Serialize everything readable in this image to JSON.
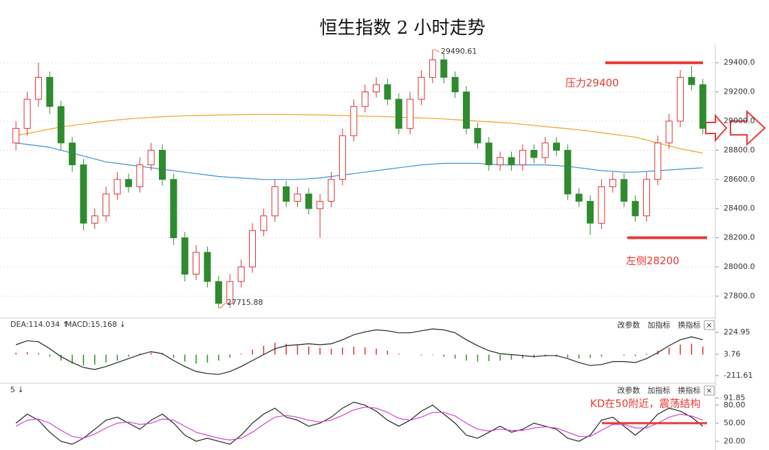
{
  "chart_data": [
    {
      "type": "candlestick",
      "title": "恒生指数 2 小时走势",
      "candles": [
        [
          28850,
          29000,
          28800,
          28950
        ],
        [
          28950,
          29200,
          28900,
          29150
        ],
        [
          29150,
          29400,
          29100,
          29300
        ],
        [
          29300,
          29340,
          29050,
          29100
        ],
        [
          29100,
          29140,
          28800,
          28850
        ],
        [
          28850,
          28890,
          28650,
          28700
        ],
        [
          28700,
          28740,
          28250,
          28300
        ],
        [
          28300,
          28400,
          28260,
          28350
        ],
        [
          28350,
          28550,
          28310,
          28500
        ],
        [
          28500,
          28650,
          28460,
          28600
        ],
        [
          28600,
          28640,
          28510,
          28550
        ],
        [
          28550,
          28750,
          28510,
          28700
        ],
        [
          28700,
          28850,
          28660,
          28800
        ],
        [
          28800,
          28840,
          28560,
          28600
        ],
        [
          28600,
          28640,
          28150,
          28200
        ],
        [
          28200,
          28240,
          27900,
          27950
        ],
        [
          27950,
          28150,
          27910,
          28100
        ],
        [
          28100,
          28140,
          27860,
          27900
        ],
        [
          27900,
          27940,
          27715.88,
          27750
        ],
        [
          27750,
          27950,
          27720,
          27900
        ],
        [
          27900,
          28050,
          27860,
          28000
        ],
        [
          28000,
          28300,
          27960,
          28250
        ],
        [
          28250,
          28400,
          28210,
          28350
        ],
        [
          28350,
          28600,
          28310,
          28550
        ],
        [
          28550,
          28590,
          28410,
          28450
        ],
        [
          28450,
          28550,
          28410,
          28500
        ],
        [
          28500,
          28540,
          28360,
          28400
        ],
        [
          28400,
          28500,
          28200,
          28450
        ],
        [
          28450,
          28650,
          28410,
          28600
        ],
        [
          28600,
          28950,
          28560,
          28900
        ],
        [
          28900,
          29150,
          28860,
          29100
        ],
        [
          29100,
          29250,
          29060,
          29200
        ],
        [
          29200,
          29300,
          29160,
          29250
        ],
        [
          29250,
          29290,
          29110,
          29150
        ],
        [
          29150,
          29190,
          28910,
          28950
        ],
        [
          28950,
          29200,
          28910,
          29150
        ],
        [
          29150,
          29350,
          29110,
          29300
        ],
        [
          29300,
          29490.61,
          29260,
          29420
        ],
        [
          29420,
          29460,
          29260,
          29300
        ],
        [
          29300,
          29340,
          29160,
          29200
        ],
        [
          29200,
          29240,
          28910,
          28950
        ],
        [
          28950,
          28990,
          28810,
          28850
        ],
        [
          28850,
          28890,
          28660,
          28700
        ],
        [
          28700,
          28790,
          28660,
          28750
        ],
        [
          28750,
          28790,
          28660,
          28700
        ],
        [
          28700,
          28840,
          28660,
          28800
        ],
        [
          28800,
          28840,
          28710,
          28750
        ],
        [
          28750,
          28890,
          28710,
          28850
        ],
        [
          28850,
          28890,
          28760,
          28800
        ],
        [
          28800,
          28840,
          28460,
          28500
        ],
        [
          28500,
          28540,
          28410,
          28450
        ],
        [
          28450,
          28490,
          28220,
          28300
        ],
        [
          28300,
          28600,
          28260,
          28550
        ],
        [
          28550,
          28650,
          28510,
          28600
        ],
        [
          28600,
          28640,
          28410,
          28450
        ],
        [
          28450,
          28490,
          28310,
          28350
        ],
        [
          28350,
          28650,
          28310,
          28600
        ],
        [
          28600,
          28900,
          28560,
          28850
        ],
        [
          28850,
          29050,
          28810,
          29000
        ],
        [
          29000,
          29350,
          28960,
          29300
        ],
        [
          29300,
          29380,
          29210,
          29250
        ],
        [
          29250,
          29290,
          28910,
          28950
        ]
      ],
      "up_color": "#d93030",
      "down_color": "#2e8b2e",
      "series": [
        {
          "color": "#f0a020",
          "values": [
            28900,
            28915,
            28930,
            28945,
            28960,
            28970,
            28980,
            28990,
            29000,
            29008,
            29015,
            29020,
            29025,
            29030,
            29033,
            29036,
            29038,
            29040,
            29042,
            29043,
            29044,
            29045,
            29045,
            29045,
            29045,
            29044,
            29043,
            29042,
            29040,
            29038,
            29036,
            29034,
            29032,
            29030,
            29027,
            29024,
            29021,
            29018,
            29015,
            29010,
            29005,
            29000,
            28995,
            28990,
            28985,
            28978,
            28970,
            28962,
            28955,
            28948,
            28940,
            28930,
            28920,
            28910,
            28900,
            28890,
            28870,
            28850,
            28830,
            28810,
            28795,
            28780
          ]
        },
        {
          "color": "#3a8fd0",
          "values": [
            28850,
            28840,
            28830,
            28820,
            28800,
            28780,
            28760,
            28740,
            28720,
            28710,
            28700,
            28690,
            28680,
            28670,
            28660,
            28650,
            28640,
            28630,
            28620,
            28615,
            28610,
            28605,
            28600,
            28600,
            28600,
            28600,
            28605,
            28610,
            28620,
            28630,
            28640,
            28650,
            28660,
            28670,
            28680,
            28690,
            28700,
            28705,
            28710,
            28710,
            28710,
            28710,
            28705,
            28700,
            28700,
            28700,
            28700,
            28700,
            28695,
            28690,
            28680,
            28670,
            28660,
            28655,
            28650,
            28650,
            28655,
            28660,
            28665,
            28670,
            28675,
            28680
          ]
        }
      ],
      "ylim": [
        27660,
        29500
      ],
      "yticks": [
        {
          "value": 29400,
          "label": "29400.0"
        },
        {
          "value": 29200,
          "label": "29200.0"
        },
        {
          "value": 29000,
          "label": "29000.0"
        },
        {
          "value": 28800,
          "label": "28800.0"
        },
        {
          "value": 28600,
          "label": "28600.0"
        },
        {
          "value": 28400,
          "label": "28400.0"
        },
        {
          "value": 28200,
          "label": "28200.0"
        },
        {
          "value": 28000,
          "label": "28000.0"
        },
        {
          "value": 27800,
          "label": "27800.0"
        }
      ],
      "grid": true,
      "annotations": [
        {
          "value": 29490.61,
          "label": "29490.61"
        },
        {
          "value": 27715.88,
          "label": "27715.88"
        }
      ],
      "levels": [
        {
          "value": 29400,
          "label": "压力29400",
          "color": "#e53935"
        },
        {
          "value": 28200,
          "label": "左侧28200",
          "color": "#e53935"
        }
      ]
    },
    {
      "type": "bar",
      "legend": [
        "DEA:114.034 ↑",
        "MACD:15.168 ↓"
      ],
      "toolbar": [
        "改参数",
        "加指标",
        "换指标",
        "×"
      ],
      "values": [
        20,
        25,
        15,
        -20,
        -60,
        -90,
        -110,
        -100,
        -80,
        -60,
        -20,
        10,
        20,
        15,
        -30,
        -70,
        -90,
        -80,
        -60,
        -30,
        10,
        50,
        90,
        120,
        110,
        100,
        80,
        70,
        60,
        70,
        80,
        75,
        60,
        40,
        10,
        0,
        -10,
        -5,
        -20,
        -40,
        -60,
        -70,
        -65,
        -60,
        -50,
        -40,
        -30,
        -20,
        -20,
        -30,
        -40,
        -35,
        -20,
        0,
        -10,
        -15,
        10,
        40,
        70,
        100,
        110,
        80
      ],
      "up_color": "#d93030",
      "down_color": "#2e8b2e",
      "series": [
        {
          "color": "#222222",
          "values": [
            100,
            140,
            130,
            60,
            -20,
            -80,
            -130,
            -150,
            -120,
            -80,
            -40,
            0,
            30,
            10,
            -60,
            -120,
            -170,
            -190,
            -200,
            -170,
            -120,
            -60,
            0,
            60,
            90,
            100,
            110,
            100,
            110,
            150,
            200,
            230,
            250,
            240,
            220,
            220,
            240,
            260,
            250,
            220,
            150,
            90,
            40,
            10,
            0,
            -10,
            -20,
            -10,
            -10,
            -40,
            -80,
            -110,
            -100,
            -70,
            -70,
            -80,
            -40,
            20,
            90,
            150,
            180,
            150
          ]
        }
      ],
      "ylim": [
        -275,
        350
      ],
      "yticks": [
        224.95,
        3.76,
        -211.61
      ]
    },
    {
      "type": "line",
      "legend": [
        "5 ↓"
      ],
      "toolbar": [
        "改参数",
        "加指标",
        "换指标",
        "×"
      ],
      "series": [
        {
          "color": "#222222",
          "values": [
            50,
            65,
            55,
            35,
            20,
            15,
            25,
            40,
            55,
            60,
            50,
            40,
            55,
            65,
            50,
            30,
            20,
            25,
            20,
            15,
            30,
            50,
            65,
            75,
            60,
            55,
            45,
            50,
            60,
            75,
            85,
            80,
            70,
            55,
            45,
            55,
            70,
            80,
            65,
            50,
            30,
            25,
            35,
            45,
            35,
            40,
            50,
            45,
            40,
            25,
            20,
            30,
            55,
            60,
            45,
            30,
            45,
            65,
            75,
            70,
            60,
            45
          ]
        },
        {
          "color": "#d040d0",
          "values": [
            45,
            55,
            57,
            50,
            38,
            28,
            25,
            32,
            42,
            50,
            52,
            48,
            50,
            57,
            55,
            45,
            35,
            30,
            25,
            22,
            25,
            35,
            48,
            60,
            63,
            60,
            55,
            52,
            55,
            63,
            72,
            77,
            75,
            68,
            58,
            55,
            60,
            68,
            68,
            62,
            50,
            40,
            37,
            40,
            38,
            38,
            42,
            44,
            42,
            35,
            28,
            28,
            38,
            48,
            48,
            42,
            42,
            50,
            60,
            65,
            62,
            55
          ]
        }
      ],
      "ylim": [
        10,
        113
      ],
      "yticks": [
        91.85,
        {
          "value": 80,
          "label": "80.00"
        },
        {
          "value": 50,
          "label": "50.00"
        },
        {
          "value": 20,
          "label": "20.00"
        }
      ],
      "levels": [
        {
          "value": 50,
          "label": "KD在50附近，震荡结构",
          "color": "#e53935"
        }
      ]
    }
  ]
}
